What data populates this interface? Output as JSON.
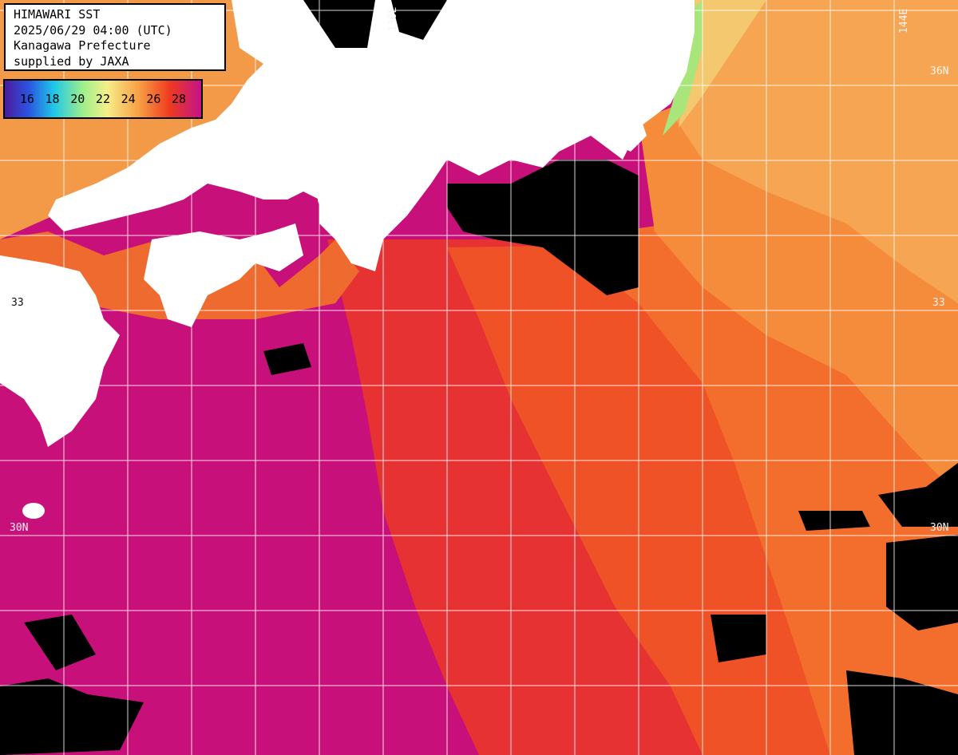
{
  "header": {
    "title": "HIMAWARI SST",
    "timestamp": "2025/06/29 04:00 (UTC)",
    "region": "Kanagawa Prefecture",
    "credit": "supplied by JAXA"
  },
  "legend": {
    "ticks": [
      "16",
      "18",
      "20",
      "22",
      "24",
      "26",
      "28"
    ]
  },
  "grid_labels": {
    "lon_136": "136E",
    "lon_144": "144E",
    "lat_36": "36N",
    "lat_33_left": "33",
    "lat_33_right": "33",
    "lat_30_left": "30N",
    "lat_30_right": "30N"
  },
  "colors": {
    "land": "#ffffff",
    "no_data": "#000000",
    "sst_28_plus": "#c8107a",
    "sst_27": "#e82a3a",
    "sst_26": "#ef4a24",
    "sst_25": "#f26a2a",
    "sst_24": "#f48a3a",
    "sst_22": "#f4a850",
    "sst_20": "#f6d27a",
    "sst_18": "#9fe87a",
    "grid": "#ffffff"
  }
}
